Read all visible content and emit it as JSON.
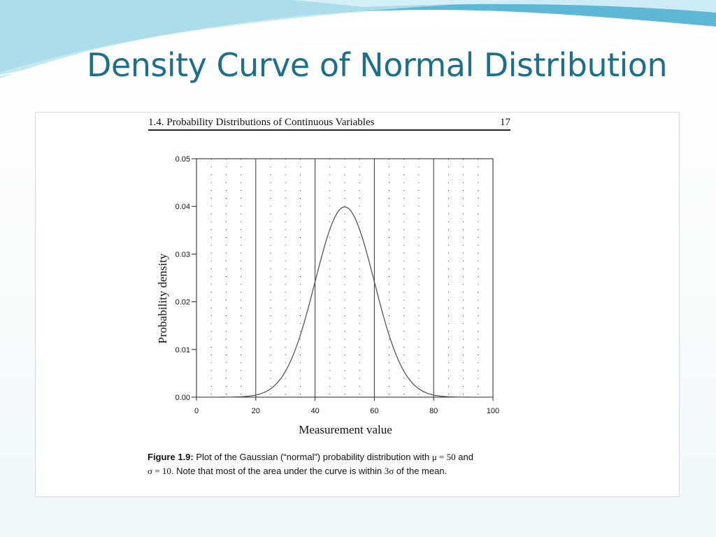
{
  "slide": {
    "title": "Density Curve of Normal Distribution",
    "colors": {
      "title": "#1f6f8b",
      "wave_dark": "#4aa3c7",
      "wave_light": "#a9dcea"
    }
  },
  "book": {
    "section_title": "1.4. Probability Distributions of Continuous Variables",
    "page_number": "17"
  },
  "figure": {
    "caption_label": "Figure 1.9:",
    "caption_line1": "Plot of the Gaussian (“normal”) probability distribution with ",
    "mu_text": "μ = 50",
    "caption_and": " and",
    "sigma_text": "σ = 10",
    "caption_line2": ". Note that most of the area under the curve is within ",
    "three_sigma": "3σ",
    "caption_end": " of the mean."
  },
  "chart_data": {
    "type": "line",
    "title": "",
    "xlabel": "Measurement value",
    "ylabel": "Probability density",
    "xlim": [
      0,
      100
    ],
    "ylim": [
      0,
      0.05
    ],
    "x_ticks": [
      "0",
      "20",
      "40",
      "60",
      "80",
      "100"
    ],
    "y_ticks": [
      "0.00",
      "0.01",
      "0.02",
      "0.03",
      "0.04",
      "0.05"
    ],
    "mean": 50,
    "sd": 10,
    "solid_vertical_lines_at": [
      20,
      40,
      60,
      80
    ],
    "dotted_vertical_lines_at": [
      5,
      10,
      15,
      25,
      30,
      35,
      45,
      50,
      55,
      65,
      70,
      75,
      85,
      90,
      95
    ],
    "series": [
      {
        "x": [
          0,
          5,
          10,
          15,
          20,
          25,
          30,
          35,
          40,
          45,
          50,
          55,
          60,
          65,
          70,
          75,
          80,
          85,
          90,
          95,
          100
        ],
        "values": [
          0.0,
          0.0,
          0.0,
          0.0001,
          0.0004,
          0.0018,
          0.0054,
          0.013,
          0.0242,
          0.0352,
          0.0399,
          0.0352,
          0.0242,
          0.013,
          0.0054,
          0.0018,
          0.0004,
          0.0001,
          0.0,
          0.0,
          0.0
        ]
      }
    ]
  }
}
